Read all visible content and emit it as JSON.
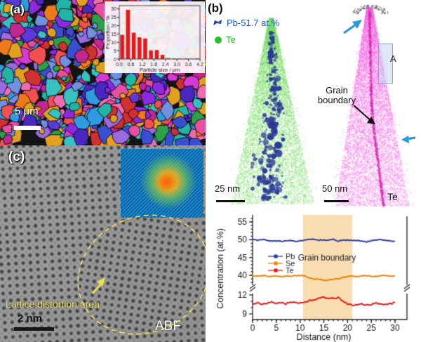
{
  "panels": {
    "a": {
      "label": "(a)",
      "scale_bar": "5 μm"
    },
    "b": {
      "label": "(b)",
      "legend": [
        {
          "label": "Pb-51.7 at.%",
          "color": "#1f55d4",
          "icon": "isosurface-flag"
        },
        {
          "label": "Te",
          "color": "#25c425",
          "icon": "dot"
        }
      ],
      "left_tip_scale_bar": "25 nm",
      "right_tip_scale_bar": "50 nm",
      "right_tip_label": "Te",
      "region_label": "A",
      "grain_boundary_label": "Grain boundary"
    },
    "c": {
      "label": "(c)",
      "annotation": "Lattice distortion area",
      "scale_bar": "2 nm",
      "mode_label": "ABF"
    }
  },
  "colors": {
    "hist_bar": "#e31a1c",
    "pb_series": "#2b3a9e",
    "se_series": "#ef8200",
    "te_series": "#e01212",
    "gb_shade": "#f8ddb0",
    "annotation_yellow": "#ecdf4e",
    "arrow_blue": "#2a9ae8",
    "left_tip_matrix": "#8cdc78",
    "left_tip_precipitate": "#2d3c96",
    "right_tip_points": "#f26ae2"
  },
  "chart_data": [
    {
      "type": "bar",
      "title": "",
      "xlabel": "Particle size / μm",
      "ylabel": "Proportion / %",
      "bin_centers": [
        0.15,
        0.45,
        0.75,
        1.05,
        1.35,
        1.65,
        1.95,
        2.25,
        2.55,
        2.85,
        3.15,
        3.45,
        3.75,
        4.05
      ],
      "values": [
        14.5,
        29.5,
        15.8,
        13.0,
        12.3,
        5.2,
        5.4,
        2.5,
        0.5,
        0.4,
        0.3,
        0.3,
        0.2,
        0.4
      ],
      "xlim": [
        0,
        4.2
      ],
      "ylim": [
        0,
        32
      ],
      "xticks": [
        0.0,
        0.6,
        1.2,
        1.8,
        2.4,
        3.0,
        3.6,
        4.2
      ],
      "yticks": [
        0,
        5,
        10,
        15,
        20,
        25,
        30
      ],
      "bar_color": "#e31a1c",
      "legend_position": "none",
      "grid": false
    },
    {
      "type": "line",
      "title": "",
      "xlabel": "Distance (nm)",
      "ylabel": "Concentration (at.%)",
      "xlim": [
        0,
        30
      ],
      "xticks": [
        0,
        5,
        10,
        15,
        20,
        25,
        30
      ],
      "axis_break": true,
      "yticks_top": [
        40,
        45,
        50,
        55
      ],
      "yticks_bottom": [
        9,
        12
      ],
      "ylim_top": [
        36,
        57
      ],
      "ylim_bottom": [
        8,
        12.5
      ],
      "shaded_region": {
        "label": "Grain boundary",
        "x_start": 10.6,
        "x_end": 21.0,
        "color": "#f8ddb0"
      },
      "legend_position": "inside-left",
      "grid": false,
      "x_step": 1,
      "series": [
        {
          "name": "Pb",
          "color": "#2b3a9e",
          "axis": "top",
          "values": [
            50.0,
            49.9,
            50.1,
            49.8,
            49.6,
            49.7,
            49.5,
            49.6,
            49.7,
            49.6,
            49.7,
            49.9,
            50.0,
            50.1,
            49.9,
            50.0,
            49.8,
            50.1,
            49.6,
            49.8,
            49.9,
            49.7,
            49.8,
            49.6,
            49.4,
            49.7,
            49.9,
            50.1,
            49.8,
            49.7,
            49.5
          ]
        },
        {
          "name": "Se",
          "color": "#ef8200",
          "axis": "top",
          "values": [
            39.9,
            39.7,
            40.0,
            39.8,
            39.7,
            39.9,
            39.6,
            39.8,
            39.7,
            39.9,
            40.0,
            39.8,
            39.3,
            39.0,
            38.9,
            38.6,
            38.8,
            38.9,
            39.0,
            39.4,
            39.7,
            39.8,
            39.7,
            39.8,
            39.9,
            39.8,
            39.7,
            39.9,
            40.0,
            39.8,
            39.8
          ]
        },
        {
          "name": "Te",
          "color": "#e01212",
          "axis": "bottom",
          "values": [
            10.6,
            10.8,
            10.5,
            10.7,
            10.9,
            10.7,
            10.8,
            10.6,
            10.9,
            10.8,
            10.7,
            10.9,
            11.1,
            11.3,
            11.5,
            11.6,
            11.4,
            11.5,
            11.6,
            11.1,
            10.5,
            10.4,
            10.5,
            10.6,
            10.4,
            10.5,
            10.7,
            10.6,
            10.5,
            10.6,
            10.8
          ]
        }
      ]
    }
  ]
}
